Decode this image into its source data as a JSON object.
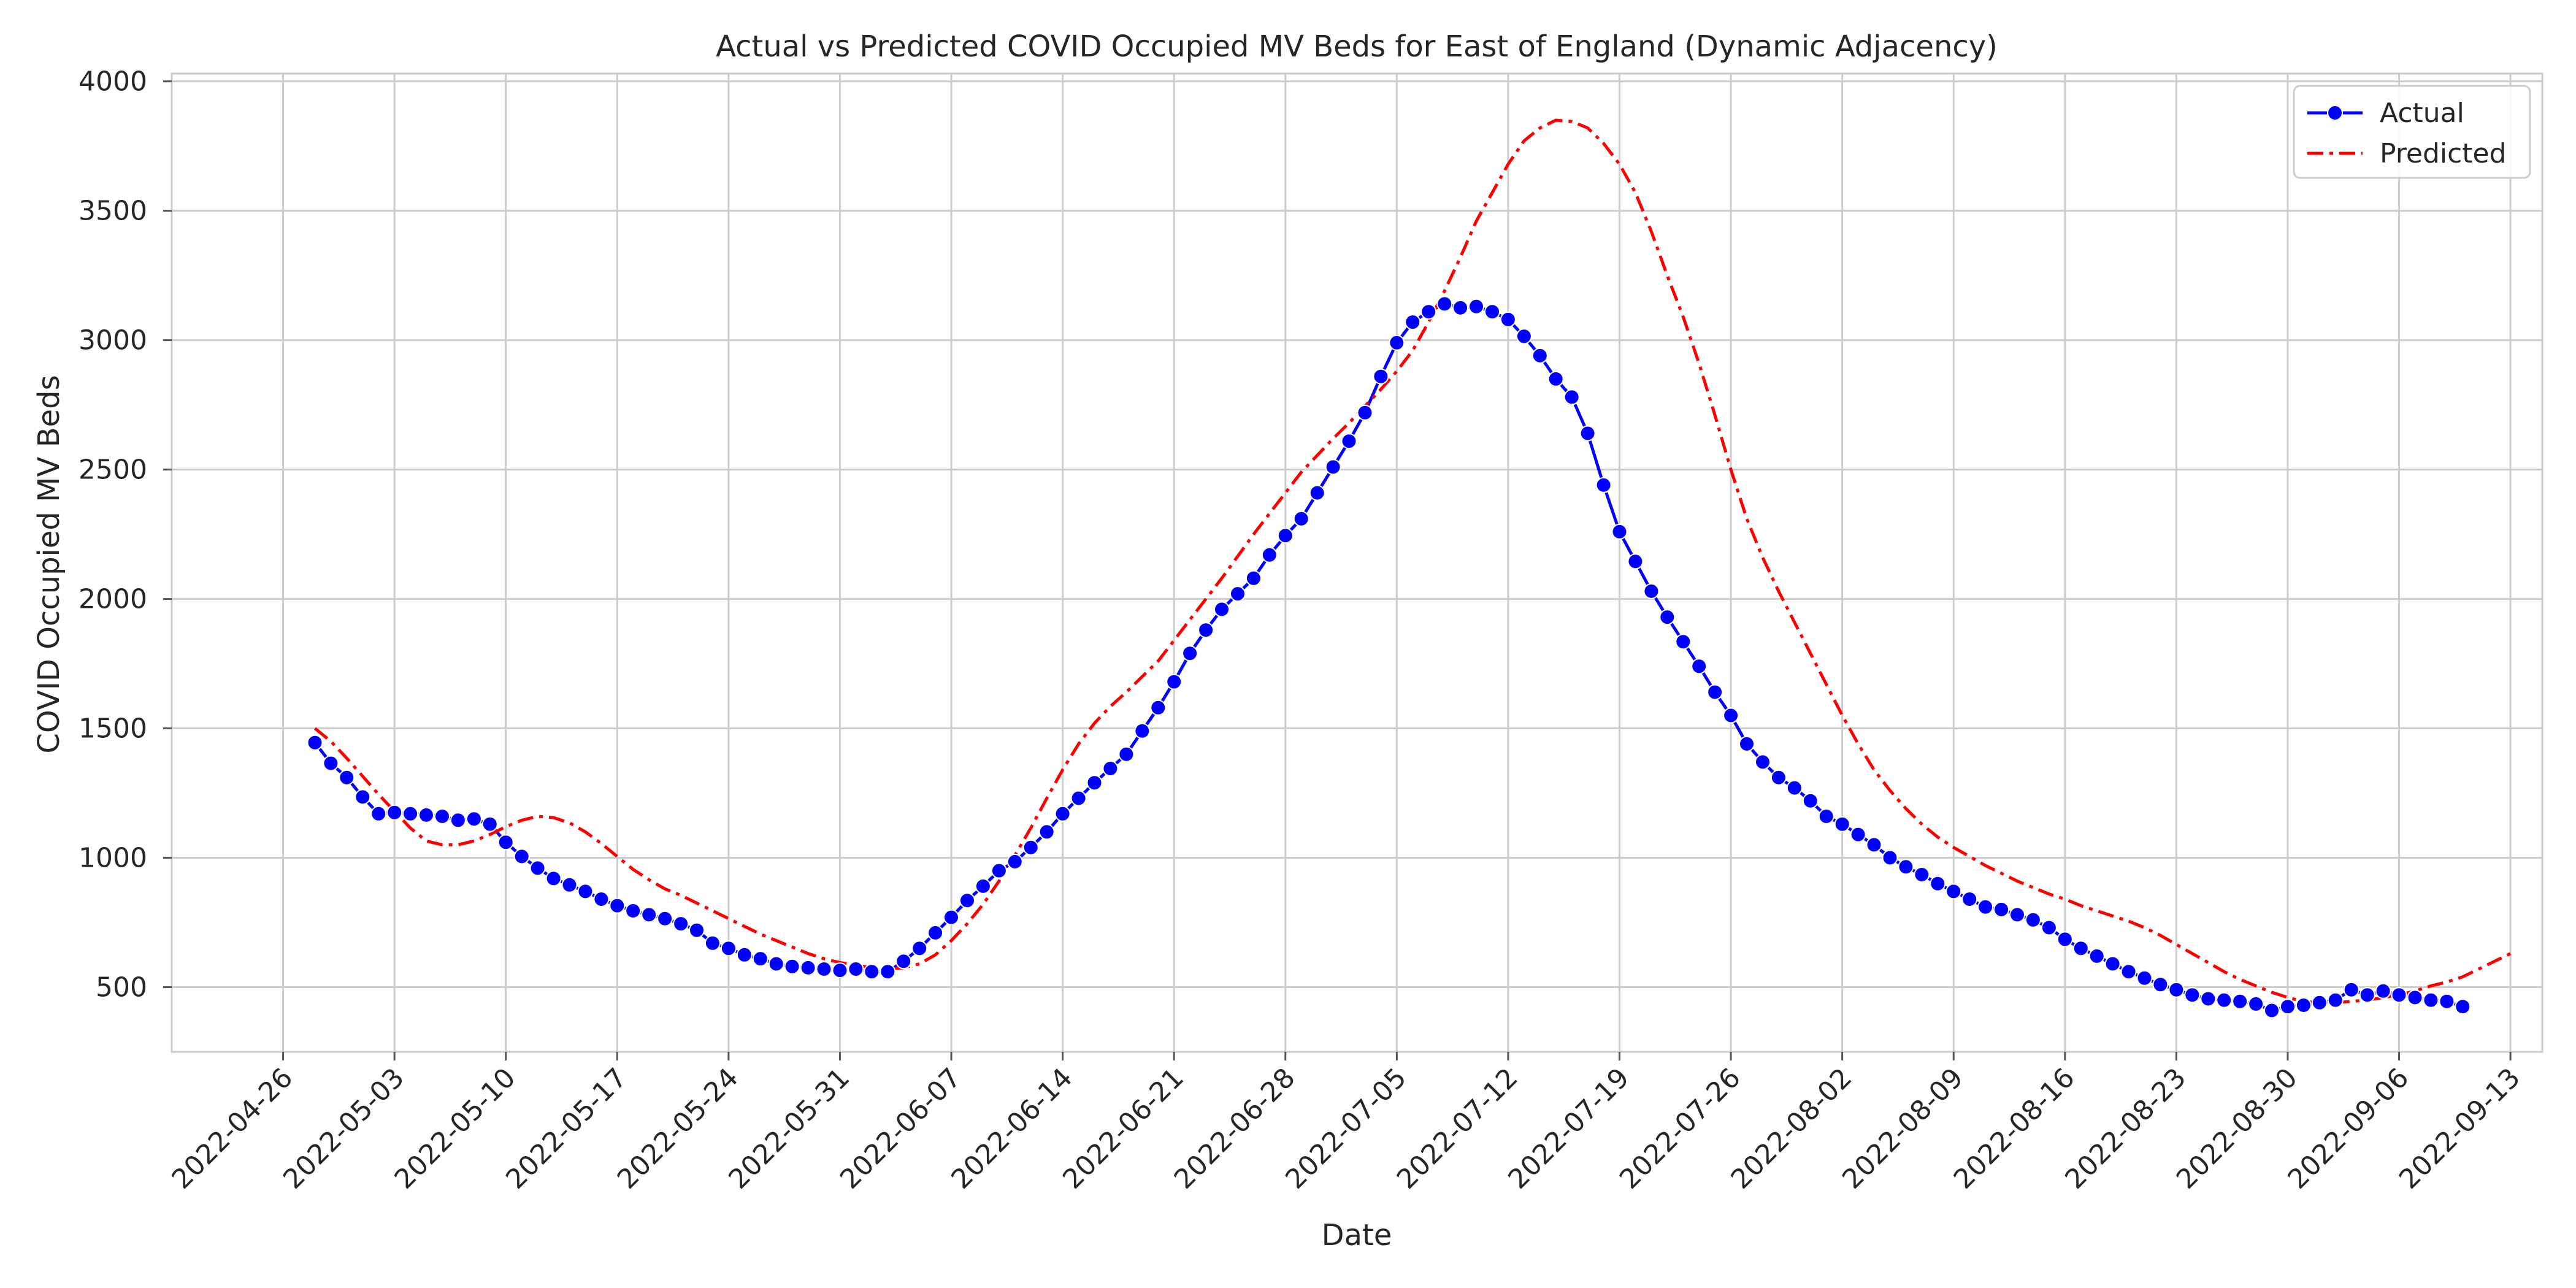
{
  "chart_data": {
    "type": "line",
    "title": "Actual vs Predicted COVID Occupied MV Beds for East of England (Dynamic Adjacency)",
    "xlabel": "Date",
    "ylabel": "COVID Occupied MV Beds",
    "xlim": [
      "2022-04-19",
      "2022-09-15"
    ],
    "ylim": [
      250,
      4030
    ],
    "x_ticks": [
      "2022-04-26",
      "2022-05-03",
      "2022-05-10",
      "2022-05-17",
      "2022-05-24",
      "2022-05-31",
      "2022-06-07",
      "2022-06-14",
      "2022-06-21",
      "2022-06-28",
      "2022-07-05",
      "2022-07-12",
      "2022-07-19",
      "2022-07-26",
      "2022-08-02",
      "2022-08-09",
      "2022-08-16",
      "2022-08-23",
      "2022-08-30",
      "2022-09-06",
      "2022-09-13"
    ],
    "y_ticks": [
      500,
      1000,
      1500,
      2000,
      2500,
      3000,
      3500,
      4000
    ],
    "grid": true,
    "legend": "top-right",
    "x_start": "2022-04-28",
    "series": [
      {
        "name": "Actual",
        "color": "#0000ff",
        "linestyle": "solid",
        "marker": "circle",
        "values": [
          1445,
          1365,
          1310,
          1235,
          1170,
          1175,
          1170,
          1165,
          1160,
          1145,
          1150,
          1130,
          1060,
          1005,
          960,
          920,
          895,
          870,
          840,
          815,
          795,
          780,
          765,
          745,
          720,
          670,
          650,
          625,
          610,
          590,
          580,
          575,
          570,
          565,
          570,
          560,
          560,
          600,
          650,
          710,
          770,
          835,
          890,
          950,
          985,
          1040,
          1100,
          1170,
          1230,
          1290,
          1345,
          1400,
          1490,
          1580,
          1680,
          1790,
          1880,
          1960,
          2020,
          2080,
          2170,
          2245,
          2310,
          2410,
          2510,
          2610,
          2720,
          2860,
          2990,
          3070,
          3110,
          3140,
          3125,
          3130,
          3110,
          3080,
          3015,
          2940,
          2850,
          2780,
          2640,
          2440,
          2260,
          2145,
          2030,
          1930,
          1835,
          1740,
          1640,
          1550,
          1440,
          1370,
          1310,
          1270,
          1220,
          1160,
          1130,
          1090,
          1050,
          1000,
          965,
          935,
          900,
          870,
          840,
          810,
          800,
          780,
          760,
          730,
          685,
          650,
          620,
          590,
          560,
          535,
          510,
          490,
          470,
          455,
          450,
          445,
          435,
          410,
          425,
          430,
          440,
          450,
          490,
          470,
          485,
          470,
          460,
          450,
          445,
          425
        ]
      },
      {
        "name": "Predicted",
        "color": "#ff0000",
        "linestyle": "dashdot",
        "values": [
          1500,
          1450,
          1385,
          1315,
          1245,
          1180,
          1115,
          1065,
          1050,
          1050,
          1065,
          1090,
          1120,
          1145,
          1160,
          1155,
          1135,
          1100,
          1055,
          1005,
          955,
          915,
          880,
          855,
          825,
          795,
          765,
          735,
          705,
          680,
          655,
          630,
          610,
          595,
          585,
          575,
          570,
          575,
          590,
          625,
          680,
          745,
          820,
          910,
          1010,
          1115,
          1230,
          1340,
          1440,
          1520,
          1585,
          1640,
          1700,
          1760,
          1840,
          1920,
          2000,
          2080,
          2165,
          2250,
          2330,
          2410,
          2490,
          2555,
          2620,
          2680,
          2745,
          2810,
          2880,
          2960,
          3070,
          3190,
          3320,
          3460,
          3570,
          3680,
          3770,
          3820,
          3850,
          3845,
          3820,
          3760,
          3680,
          3570,
          3420,
          3250,
          3090,
          2910,
          2710,
          2500,
          2310,
          2160,
          2030,
          1910,
          1790,
          1670,
          1550,
          1440,
          1340,
          1260,
          1190,
          1130,
          1080,
          1040,
          1005,
          970,
          940,
          910,
          885,
          860,
          840,
          815,
          795,
          775,
          755,
          730,
          700,
          665,
          630,
          595,
          560,
          530,
          505,
          480,
          460,
          445,
          440,
          440,
          445,
          450,
          460,
          470,
          485,
          505,
          520,
          540,
          570,
          600,
          630
        ]
      }
    ]
  }
}
